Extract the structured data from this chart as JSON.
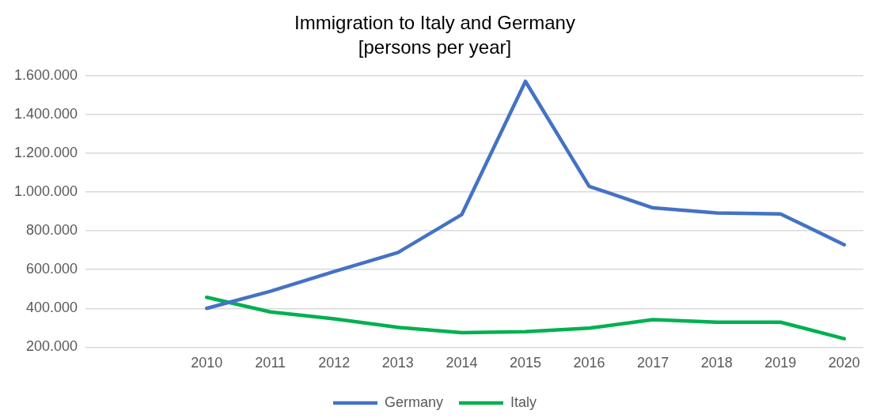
{
  "chart_data": {
    "type": "line",
    "title": "Immigration to Italy and Germany",
    "subtitle": "[persons per year]",
    "x": [
      2010,
      2011,
      2012,
      2013,
      2014,
      2015,
      2016,
      2017,
      2018,
      2019,
      2020
    ],
    "xlim": [
      2008.1,
      2020.3
    ],
    "xticks": [
      2010,
      2011,
      2012,
      2013,
      2014,
      2015,
      2016,
      2017,
      2018,
      2019,
      2020
    ],
    "ylim": [
      200000,
      1600000
    ],
    "yticks": [
      {
        "value": 200000,
        "label": "200.000"
      },
      {
        "value": 400000,
        "label": "400.000"
      },
      {
        "value": 600000,
        "label": "600.000"
      },
      {
        "value": 800000,
        "label": "800.000"
      },
      {
        "value": 1000000,
        "label": "1.000.000"
      },
      {
        "value": 1200000,
        "label": "1.200.000"
      },
      {
        "value": 1400000,
        "label": "1.400.000"
      },
      {
        "value": 1600000,
        "label": "1.600.000"
      }
    ],
    "series": [
      {
        "name": "Germany",
        "color": "#4472c4",
        "values": [
          400000,
          488000,
          590000,
          688000,
          883000,
          1570000,
          1029000,
          918000,
          892000,
          887000,
          728000
        ]
      },
      {
        "name": "Italy",
        "color": "#00b050",
        "values": [
          457000,
          382000,
          346000,
          302000,
          275000,
          280000,
          298000,
          342000,
          329000,
          329000,
          244000
        ]
      }
    ],
    "grid": "y",
    "legend": "bottom",
    "marker": "none",
    "line_style": "solid"
  }
}
